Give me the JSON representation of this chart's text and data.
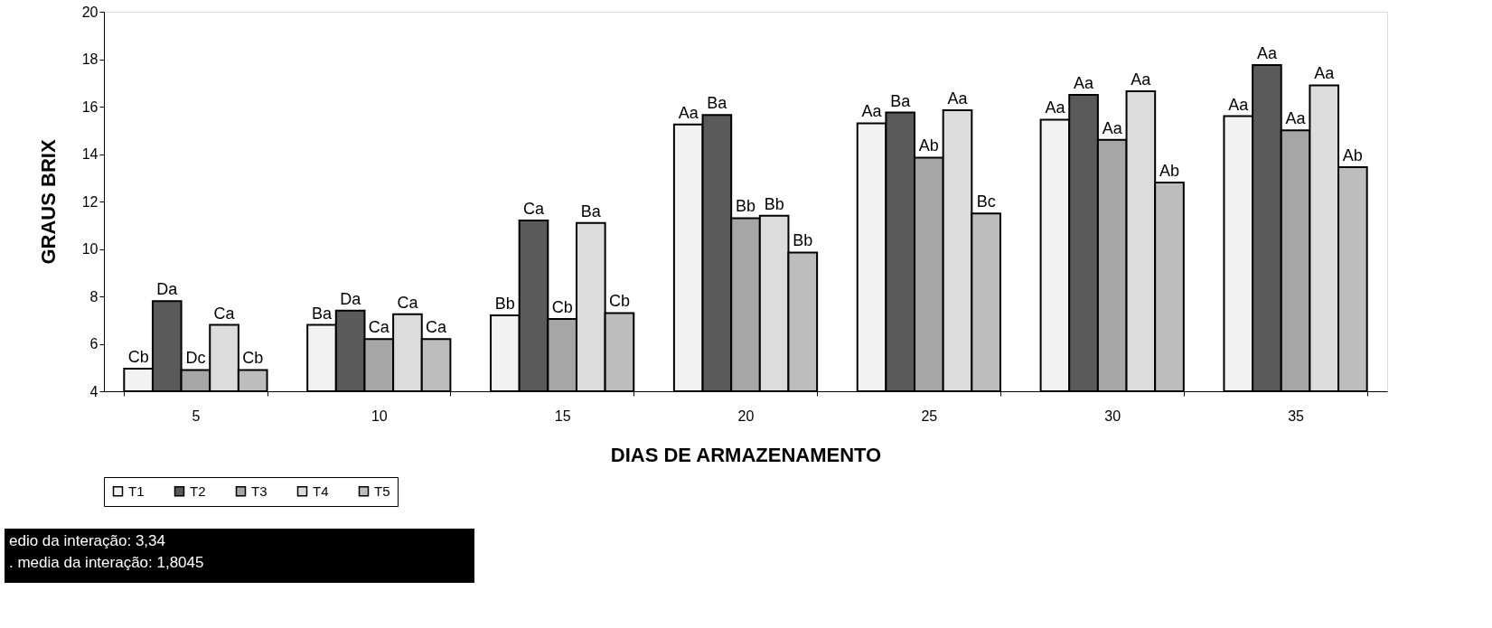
{
  "chart_data": {
    "type": "bar",
    "xlabel": "DIAS DE ARMAZENAMENTO",
    "ylabel": "GRAUS BRIX",
    "categories": [
      "5",
      "10",
      "15",
      "20",
      "25",
      "30",
      "35"
    ],
    "ylim": [
      4,
      20
    ],
    "yticks": [
      4,
      6,
      8,
      10,
      12,
      14,
      16,
      18,
      20
    ],
    "grid": false,
    "legend": "bottom",
    "series": [
      {
        "name": "T1",
        "color": "#f2f2f2",
        "values": [
          4.95,
          6.8,
          7.2,
          15.25,
          15.3,
          15.45,
          15.6
        ],
        "value_labels": [
          "Cb",
          "Ba",
          "Bb",
          "Aa",
          "Aa",
          "Aa",
          "Aa"
        ]
      },
      {
        "name": "T2",
        "color": "#5a5a5a",
        "values": [
          7.8,
          7.4,
          11.2,
          15.65,
          15.75,
          16.5,
          17.75
        ],
        "value_labels": [
          "Da",
          "Da",
          "Ca",
          "Ba",
          "Ba",
          "Aa",
          "Aa"
        ]
      },
      {
        "name": "T3",
        "color": "#a6a6a6",
        "values": [
          4.9,
          6.2,
          7.05,
          11.3,
          13.85,
          14.6,
          15.0
        ],
        "value_labels": [
          "Dc",
          "Ca",
          "Cb",
          "Bb",
          "Ab",
          "Aa",
          "Aa"
        ]
      },
      {
        "name": "T4",
        "color": "#dcdcdc",
        "values": [
          6.8,
          7.25,
          11.1,
          11.4,
          15.85,
          16.65,
          16.9
        ],
        "value_labels": [
          "Ca",
          "Ca",
          "Ba",
          "Bb",
          "Aa",
          "Aa",
          "Aa"
        ]
      },
      {
        "name": "T5",
        "color": "#bdbdbd",
        "values": [
          4.9,
          6.2,
          7.3,
          9.85,
          11.5,
          12.8,
          13.45
        ],
        "value_labels": [
          "Cb",
          "Ca",
          "Cb",
          "Bb",
          "Bc",
          "Ab",
          "Ab"
        ]
      }
    ],
    "annotations": [
      "edio da interação: 3,34",
      ". media da interação: 1,8045"
    ]
  }
}
